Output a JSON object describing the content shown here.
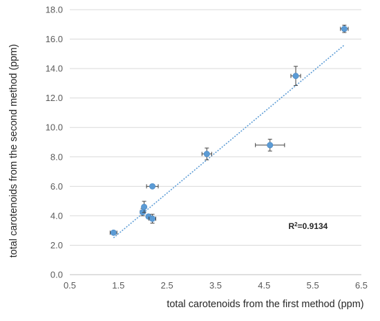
{
  "chart_data": {
    "type": "scatter",
    "title": "",
    "xlabel": "total carotenoids from the first method (ppm)",
    "ylabel": "total carotenoids from the second method (ppm)",
    "xlim": [
      0.5,
      6.5
    ],
    "ylim": [
      0.0,
      18.0
    ],
    "x_ticks": [
      "0.5",
      "1.5",
      "2.5",
      "3.5",
      "4.5",
      "5.5",
      "6.5"
    ],
    "y_ticks": [
      "0.0",
      "2.0",
      "4.0",
      "6.0",
      "8.0",
      "10.0",
      "12.0",
      "14.0",
      "16.0",
      "18.0"
    ],
    "grid": {
      "x": false,
      "y": true
    },
    "marker_color": "#5B9BD5",
    "trendline_color": "#5B9BD5",
    "trendline": {
      "type": "linear",
      "x_range": [
        1.4,
        6.15
      ],
      "y_range": [
        2.5,
        15.6
      ]
    },
    "annotation": {
      "text_base": "R",
      "text_sup": "2",
      "text_value": "=0.9134",
      "x": 5.0,
      "y": 3.1
    },
    "points": [
      {
        "x": 1.4,
        "y": 2.85,
        "xerr": 0.07,
        "yerr": 0.12
      },
      {
        "x": 2.0,
        "y": 4.25,
        "xerr": 0.05,
        "yerr": 0.25
      },
      {
        "x": 2.03,
        "y": 4.6,
        "xerr": 0.04,
        "yerr": 0.38
      },
      {
        "x": 2.12,
        "y": 3.95,
        "xerr": 0.04,
        "yerr": 0.1
      },
      {
        "x": 2.2,
        "y": 3.8,
        "xerr": 0.07,
        "yerr": 0.3
      },
      {
        "x": 2.2,
        "y": 6.0,
        "xerr": 0.12,
        "yerr": 0.05
      },
      {
        "x": 3.32,
        "y": 8.2,
        "xerr": 0.1,
        "yerr": 0.4
      },
      {
        "x": 4.62,
        "y": 8.8,
        "xerr": 0.3,
        "yerr": 0.4
      },
      {
        "x": 5.15,
        "y": 13.5,
        "xerr": 0.1,
        "yerr": 0.65
      },
      {
        "x": 6.15,
        "y": 16.7,
        "xerr": 0.08,
        "yerr": 0.25
      }
    ]
  }
}
